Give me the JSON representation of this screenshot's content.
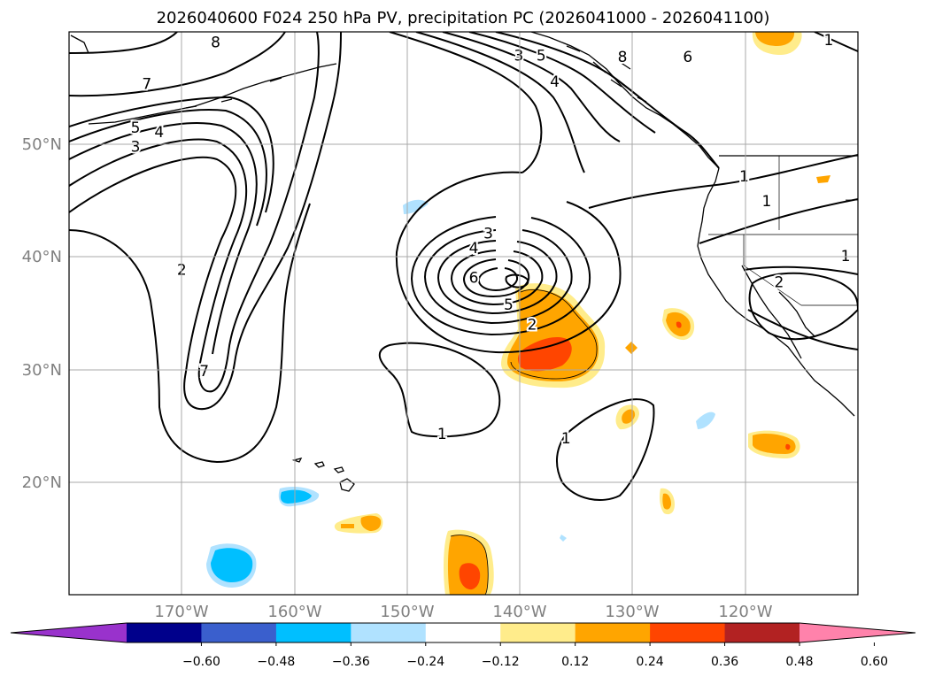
{
  "title": "2026040600 F024 250 hPa PV, precipitation PC (2026041000 - 2026041100)",
  "map": {
    "lon_range": [
      -180,
      -110
    ],
    "lat_range": [
      10,
      60
    ],
    "lon_ticks": [
      {
        "value": -170,
        "label": "170°W"
      },
      {
        "value": -160,
        "label": "160°W"
      },
      {
        "value": -150,
        "label": "150°W"
      },
      {
        "value": -140,
        "label": "140°W"
      },
      {
        "value": -130,
        "label": "130°W"
      },
      {
        "value": -120,
        "label": "120°W"
      }
    ],
    "lat_ticks": [
      {
        "value": 20,
        "label": "20°N"
      },
      {
        "value": 30,
        "label": "30°N"
      },
      {
        "value": 40,
        "label": "40°N"
      },
      {
        "value": 50,
        "label": "50°N"
      }
    ],
    "gridlines": true,
    "tick_color": "#808080"
  },
  "colorbar": {
    "extend": "both",
    "levels": [
      "-0.60",
      "-0.48",
      "-0.36",
      "-0.24",
      "-0.12",
      "0.12",
      "0.24",
      "0.36",
      "0.48",
      "0.60"
    ],
    "colors": [
      "#9932cc",
      "#00008b",
      "#3a5fcd",
      "#00bfff",
      "#b0e2ff",
      "#ffffff",
      "#ffec8b",
      "#ffa500",
      "#ff4500",
      "#b22222",
      "#ff82ab"
    ]
  },
  "contour_labels": [
    {
      "text": "8",
      "lon": -167.0,
      "lat": 59.1
    },
    {
      "text": "7",
      "lon": -173.1,
      "lat": 55.4
    },
    {
      "text": "5",
      "lon": -174.1,
      "lat": 51.5
    },
    {
      "text": "4",
      "lon": -172.0,
      "lat": 51.1
    },
    {
      "text": "3",
      "lon": -174.1,
      "lat": 49.8
    },
    {
      "text": "2",
      "lon": -170.0,
      "lat": 38.9
    },
    {
      "text": "7",
      "lon": -168.0,
      "lat": 29.9
    },
    {
      "text": "3",
      "lon": -140.1,
      "lat": 57.9
    },
    {
      "text": "5",
      "lon": -138.1,
      "lat": 57.9
    },
    {
      "text": "4",
      "lon": -136.9,
      "lat": 55.6
    },
    {
      "text": "8",
      "lon": -130.9,
      "lat": 57.8
    },
    {
      "text": "6",
      "lon": -125.1,
      "lat": 57.8
    },
    {
      "text": "1",
      "lon": -112.6,
      "lat": 59.3
    },
    {
      "text": "1",
      "lon": -120.1,
      "lat": 47.2
    },
    {
      "text": "1",
      "lon": -118.1,
      "lat": 45.0
    },
    {
      "text": "2",
      "lon": -117.0,
      "lat": 37.8
    },
    {
      "text": "1",
      "lon": -111.1,
      "lat": 40.1
    },
    {
      "text": "3",
      "lon": -142.8,
      "lat": 42.1
    },
    {
      "text": "4",
      "lon": -144.1,
      "lat": 40.8
    },
    {
      "text": "6",
      "lon": -144.1,
      "lat": 38.2
    },
    {
      "text": "5",
      "lon": -141.0,
      "lat": 35.8
    },
    {
      "text": "2",
      "lon": -138.9,
      "lat": 34.0
    },
    {
      "text": "1",
      "lon": -146.9,
      "lat": 24.3
    },
    {
      "text": "1",
      "lon": -135.9,
      "lat": 23.9
    }
  ]
}
